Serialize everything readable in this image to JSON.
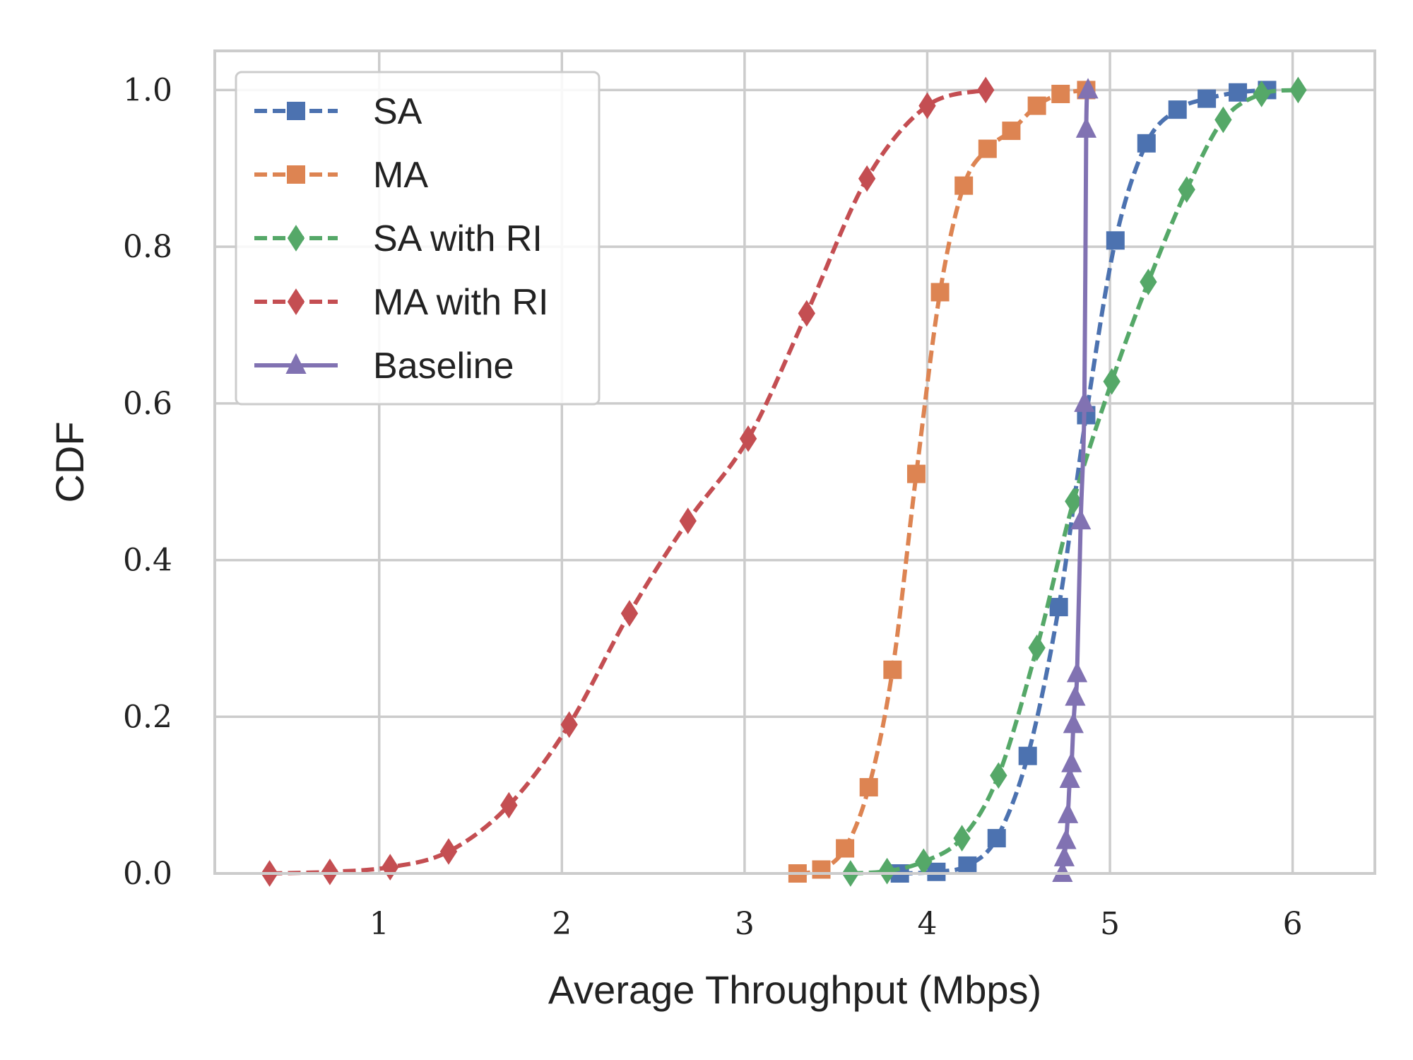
{
  "chart_data": {
    "type": "line",
    "xlabel": "Average Throughput (Mbps)",
    "ylabel": "CDF",
    "xlim": [
      0.1,
      6.45
    ],
    "ylim": [
      0.0,
      1.05
    ],
    "xticks": [
      1,
      2,
      3,
      4,
      5,
      6
    ],
    "yticks": [
      0.0,
      0.2,
      0.4,
      0.6,
      0.8,
      1.0
    ],
    "xtick_labels": [
      "1",
      "2",
      "3",
      "4",
      "5",
      "6"
    ],
    "ytick_labels": [
      "0.0",
      "0.2",
      "0.4",
      "0.6",
      "0.8",
      "1.0"
    ],
    "grid": true,
    "legend_position": "top-left",
    "series": [
      {
        "name": "SA",
        "color": "#4C72B0",
        "line_style": "dashed",
        "marker": "square",
        "x": [
          3.85,
          4.05,
          4.22,
          4.38,
          4.55,
          4.72,
          4.87,
          5.03,
          5.2,
          5.37,
          5.53,
          5.7,
          5.86
        ],
        "y": [
          0.0,
          0.002,
          0.01,
          0.045,
          0.15,
          0.34,
          0.585,
          0.808,
          0.932,
          0.975,
          0.989,
          0.997,
          1.0
        ]
      },
      {
        "name": "MA",
        "color": "#DD8452",
        "line_style": "dashed",
        "marker": "square",
        "x": [
          3.29,
          3.42,
          3.55,
          3.68,
          3.81,
          3.94,
          4.07,
          4.2,
          4.33,
          4.46,
          4.6,
          4.73,
          4.87
        ],
        "y": [
          0.0,
          0.005,
          0.032,
          0.11,
          0.26,
          0.51,
          0.742,
          0.878,
          0.925,
          0.948,
          0.98,
          0.995,
          1.0
        ]
      },
      {
        "name": "SA with RI",
        "color": "#55A868",
        "line_style": "dashed",
        "marker": "diamond",
        "x": [
          3.58,
          3.78,
          3.98,
          4.19,
          4.39,
          4.6,
          4.8,
          5.01,
          5.21,
          5.42,
          5.62,
          5.83,
          6.03
        ],
        "y": [
          0.0,
          0.003,
          0.015,
          0.045,
          0.125,
          0.288,
          0.475,
          0.628,
          0.755,
          0.873,
          0.962,
          0.995,
          1.0
        ]
      },
      {
        "name": "MA with RI",
        "color": "#C44E52",
        "line_style": "dashed",
        "marker": "diamond",
        "x": [
          0.4,
          0.73,
          1.06,
          1.38,
          1.71,
          2.04,
          2.37,
          2.69,
          3.02,
          3.34,
          3.67,
          4.0,
          4.32
        ],
        "y": [
          0.0,
          0.002,
          0.008,
          0.028,
          0.087,
          0.19,
          0.332,
          0.45,
          0.555,
          0.715,
          0.887,
          0.98,
          1.0
        ]
      },
      {
        "name": "Baseline",
        "color": "#8172B2",
        "line_style": "solid",
        "marker": "triangle",
        "x": [
          4.74,
          4.75,
          4.76,
          4.77,
          4.78,
          4.79,
          4.8,
          4.81,
          4.82,
          4.84,
          4.86,
          4.87,
          4.88
        ],
        "y": [
          0.0,
          0.02,
          0.042,
          0.075,
          0.12,
          0.14,
          0.19,
          0.225,
          0.255,
          0.45,
          0.6,
          0.95,
          1.0
        ]
      }
    ]
  }
}
